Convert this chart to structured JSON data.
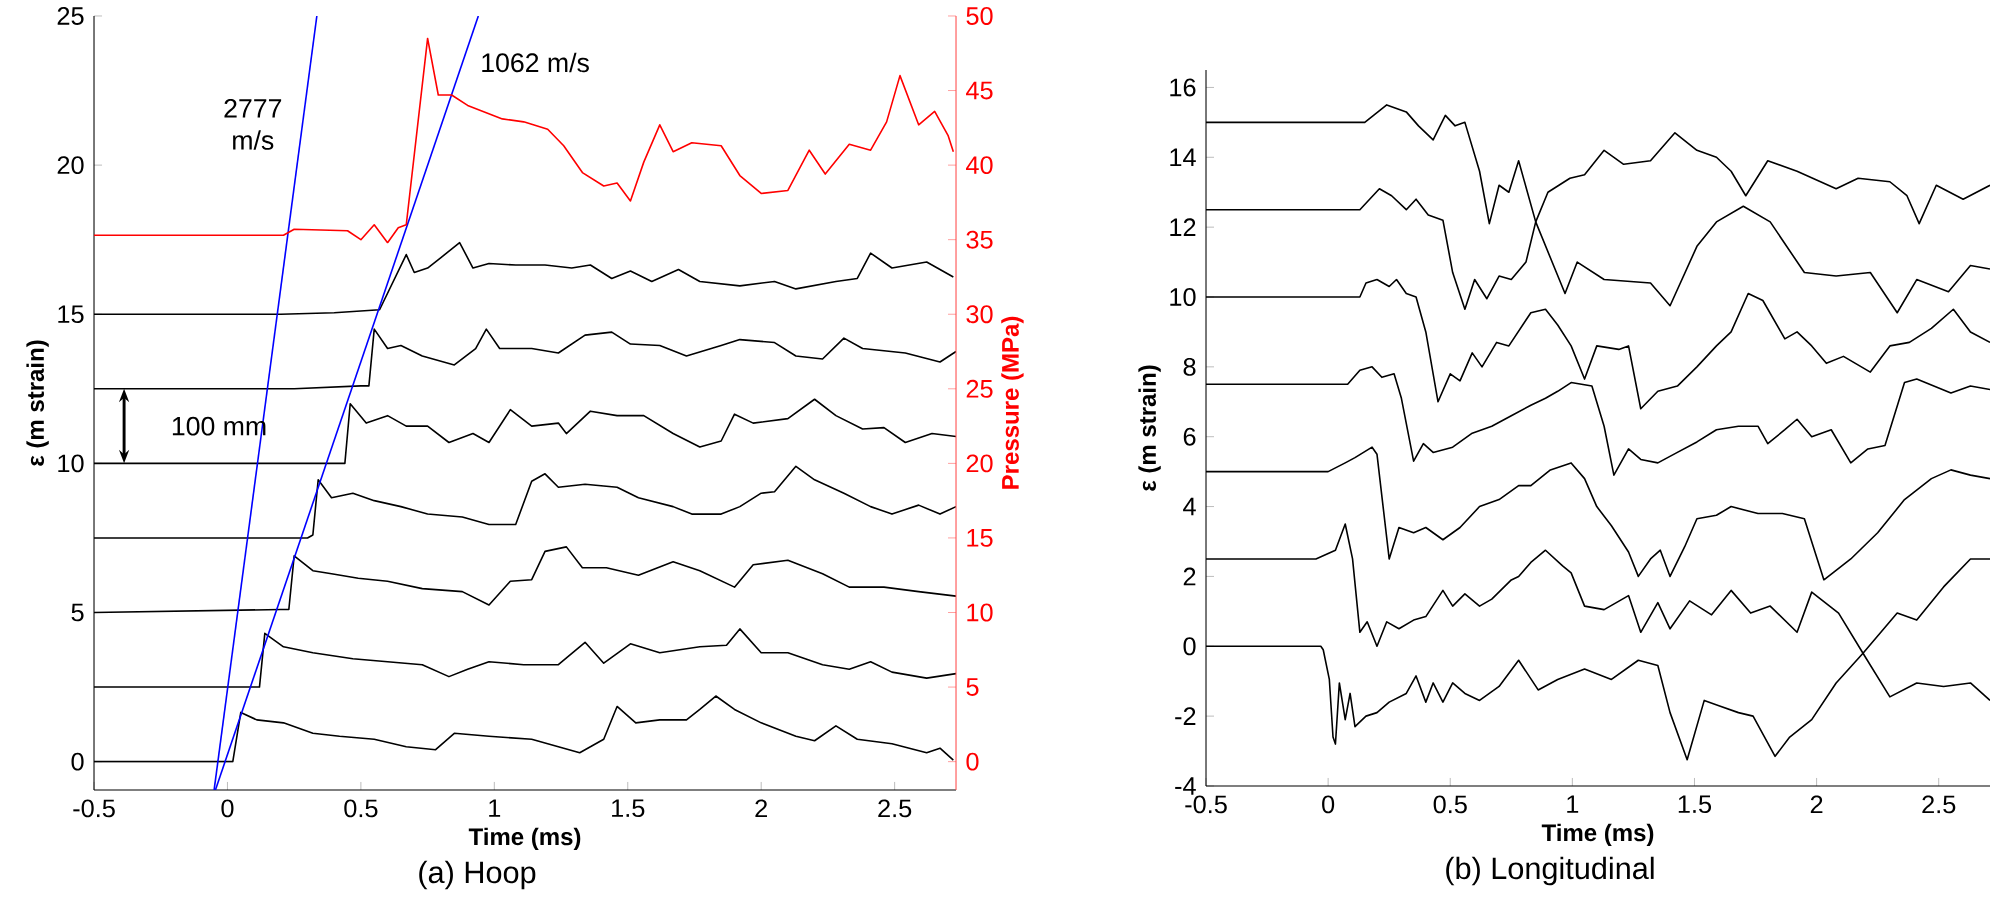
{
  "chart_data": [
    {
      "type": "line",
      "title": "(a) Hoop",
      "xlabel": "Time (ms)",
      "ylabel": "ε (m strain)",
      "y2label": "Pressure (MPa)",
      "xlim": [
        -0.5,
        2.73
      ],
      "ylim": [
        -0.95,
        25
      ],
      "y2lim": [
        -1.9,
        50
      ],
      "xticks": [
        -0.5,
        0,
        0.5,
        1,
        1.5,
        2,
        2.5
      ],
      "yticks": [
        0,
        5,
        10,
        15,
        20,
        25
      ],
      "y2ticks": [
        0,
        5,
        10,
        15,
        20,
        25,
        30,
        35,
        40,
        45,
        50
      ],
      "annotations": [
        "100 mm"
      ],
      "series": [
        {
          "color": "#000000",
          "x": [
            -0.5,
            0.2,
            0.4,
            0.57,
            0.67,
            0.7,
            0.75,
            0.8,
            0.87,
            0.92,
            0.98,
            1.08,
            1.19,
            1.29,
            1.36,
            1.44,
            1.51,
            1.59,
            1.69,
            1.77,
            1.92,
            2.05,
            2.13,
            2.28,
            2.36,
            2.41,
            2.49,
            2.62,
            2.72
          ],
          "values": [
            15,
            15,
            15.05,
            15.15,
            17.0,
            16.4,
            16.55,
            16.9,
            17.4,
            16.55,
            16.7,
            16.65,
            16.65,
            16.55,
            16.65,
            16.2,
            16.45,
            16.1,
            16.5,
            16.1,
            15.95,
            16.1,
            15.85,
            16.1,
            16.2,
            17.05,
            16.55,
            16.75,
            16.25
          ]
        },
        {
          "color": "#000000",
          "x": [
            -0.5,
            0.25,
            0.5,
            0.53,
            0.55,
            0.6,
            0.65,
            0.73,
            0.85,
            0.93,
            0.97,
            1.02,
            1.14,
            1.24,
            1.34,
            1.44,
            1.51,
            1.62,
            1.72,
            1.85,
            1.92,
            2.05,
            2.13,
            2.23,
            2.31,
            2.38,
            2.54,
            2.67,
            2.73
          ],
          "values": [
            12.5,
            12.5,
            12.6,
            12.6,
            14.5,
            13.85,
            13.95,
            13.6,
            13.3,
            13.85,
            14.5,
            13.85,
            13.85,
            13.7,
            14.3,
            14.4,
            14.0,
            13.95,
            13.6,
            13.95,
            14.15,
            14.05,
            13.6,
            13.5,
            14.2,
            13.85,
            13.7,
            13.4,
            13.75
          ]
        },
        {
          "color": "#000000",
          "x": [
            -0.5,
            0.44,
            0.46,
            0.52,
            0.6,
            0.67,
            0.75,
            0.83,
            0.92,
            0.98,
            1.06,
            1.14,
            1.24,
            1.27,
            1.36,
            1.46,
            1.56,
            1.67,
            1.77,
            1.85,
            1.9,
            1.97,
            2.1,
            2.2,
            2.28,
            2.38,
            2.46,
            2.54,
            2.64,
            2.73
          ],
          "values": [
            10,
            10,
            12.0,
            11.35,
            11.6,
            11.25,
            11.25,
            10.7,
            11.0,
            10.7,
            11.8,
            11.25,
            11.35,
            11.0,
            11.75,
            11.6,
            11.6,
            11.0,
            10.55,
            10.75,
            11.65,
            11.35,
            11.5,
            12.15,
            11.6,
            11.15,
            11.2,
            10.7,
            11.0,
            10.9
          ]
        },
        {
          "color": "#000000",
          "x": [
            -0.5,
            0.3,
            0.32,
            0.34,
            0.39,
            0.47,
            0.55,
            0.65,
            0.75,
            0.88,
            0.98,
            1.08,
            1.14,
            1.19,
            1.24,
            1.34,
            1.46,
            1.54,
            1.67,
            1.74,
            1.85,
            1.92,
            2.0,
            2.05,
            2.13,
            2.2,
            2.31,
            2.41,
            2.49,
            2.59,
            2.67,
            2.73
          ],
          "values": [
            7.5,
            7.5,
            7.6,
            9.45,
            8.85,
            9.0,
            8.75,
            8.55,
            8.3,
            8.2,
            7.95,
            7.95,
            9.4,
            9.65,
            9.2,
            9.3,
            9.2,
            8.85,
            8.55,
            8.3,
            8.3,
            8.55,
            9.0,
            9.05,
            9.9,
            9.45,
            9.0,
            8.55,
            8.3,
            8.6,
            8.3,
            8.55
          ]
        },
        {
          "color": "#000000",
          "x": [
            -0.5,
            0.2,
            0.23,
            0.25,
            0.32,
            0.39,
            0.49,
            0.6,
            0.73,
            0.88,
            0.98,
            1.06,
            1.14,
            1.19,
            1.27,
            1.33,
            1.42,
            1.54,
            1.67,
            1.77,
            1.9,
            1.97,
            2.1,
            2.23,
            2.33,
            2.46,
            2.59,
            2.73
          ],
          "values": [
            5,
            5.1,
            5.1,
            6.9,
            6.4,
            6.3,
            6.15,
            6.05,
            5.8,
            5.7,
            5.25,
            6.05,
            6.1,
            7.05,
            7.2,
            6.5,
            6.5,
            6.25,
            6.7,
            6.4,
            5.85,
            6.6,
            6.75,
            6.3,
            5.85,
            5.85,
            5.7,
            5.55
          ]
        },
        {
          "color": "#000000",
          "x": [
            -0.5,
            0.12,
            0.14,
            0.21,
            0.32,
            0.47,
            0.6,
            0.73,
            0.83,
            0.9,
            0.98,
            1.11,
            1.24,
            1.34,
            1.41,
            1.51,
            1.62,
            1.77,
            1.87,
            1.92,
            2.0,
            2.1,
            2.23,
            2.33,
            2.41,
            2.49,
            2.62,
            2.73
          ],
          "values": [
            2.5,
            2.5,
            4.3,
            3.85,
            3.65,
            3.45,
            3.35,
            3.25,
            2.85,
            3.1,
            3.35,
            3.25,
            3.25,
            4.0,
            3.3,
            3.95,
            3.65,
            3.85,
            3.9,
            4.45,
            3.65,
            3.65,
            3.25,
            3.1,
            3.35,
            3.0,
            2.8,
            2.95
          ]
        },
        {
          "color": "#000000",
          "x": [
            -0.5,
            0.02,
            0.05,
            0.11,
            0.21,
            0.32,
            0.42,
            0.55,
            0.67,
            0.78,
            0.85,
            0.98,
            1.14,
            1.24,
            1.32,
            1.41,
            1.46,
            1.53,
            1.62,
            1.72,
            1.77,
            1.83,
            1.9,
            2.0,
            2.13,
            2.2,
            2.28,
            2.36,
            2.49,
            2.62,
            2.67,
            2.72
          ],
          "values": [
            0,
            0,
            1.65,
            1.4,
            1.3,
            0.95,
            0.85,
            0.75,
            0.5,
            0.4,
            0.95,
            0.85,
            0.75,
            0.5,
            0.3,
            0.75,
            1.85,
            1.3,
            1.4,
            1.4,
            1.75,
            2.2,
            1.75,
            1.3,
            0.85,
            0.7,
            1.2,
            0.75,
            0.6,
            0.3,
            0.45,
            0.05
          ]
        },
        {
          "color": "#ff0000",
          "axis": "y2",
          "x": [
            -0.5,
            0.21,
            0.25,
            0.45,
            0.5,
            0.55,
            0.6,
            0.64,
            0.67,
            0.75,
            0.79,
            0.84,
            0.9,
            1.03,
            1.11,
            1.2,
            1.26,
            1.33,
            1.41,
            1.46,
            1.51,
            1.56,
            1.62,
            1.67,
            1.74,
            1.85,
            1.92,
            2.0,
            2.1,
            2.18,
            2.24,
            2.33,
            2.41,
            2.47,
            2.52,
            2.59,
            2.65,
            2.7,
            2.72
          ],
          "values": [
            35.3,
            35.3,
            35.7,
            35.6,
            35.0,
            36.0,
            34.8,
            35.8,
            36.0,
            48.5,
            44.7,
            44.7,
            44.0,
            43.1,
            42.9,
            42.4,
            41.3,
            39.5,
            38.6,
            38.8,
            37.6,
            40.2,
            42.7,
            40.9,
            41.5,
            41.3,
            39.3,
            38.1,
            38.3,
            41.0,
            39.4,
            41.4,
            41.0,
            42.9,
            46.0,
            42.7,
            43.6,
            42.0,
            40.9
          ]
        },
        {
          "name": "2777 m/s",
          "color": "#0000ff",
          "x": [
            -0.05,
            0.335
          ],
          "values": [
            -0.95,
            25
          ]
        },
        {
          "name": "1062 m/s",
          "color": "#0000ff",
          "x": [
            -0.045,
            0.94
          ],
          "values": [
            -0.95,
            25
          ]
        }
      ]
    },
    {
      "type": "line",
      "title": "(b) Longitudinal",
      "xlabel": "Time (ms)",
      "ylabel": "ε (m strain)",
      "xlim": [
        -0.5,
        2.71
      ],
      "ylim": [
        -4,
        16.5
      ],
      "xticks": [
        -0.5,
        0,
        0.5,
        1,
        1.5,
        2,
        2.5
      ],
      "yticks": [
        -4,
        -2,
        0,
        2,
        4,
        6,
        8,
        10,
        12,
        14,
        16
      ],
      "series": [
        {
          "color": "#000000",
          "x": [
            -0.5,
            0.15,
            0.24,
            0.32,
            0.37,
            0.43,
            0.48,
            0.52,
            0.56,
            0.62,
            0.66,
            0.7,
            0.74,
            0.78,
            0.85,
            0.97,
            1.02,
            1.13,
            1.32,
            1.4,
            1.51,
            1.59,
            1.7,
            1.81,
            1.95,
            2.08,
            2.22,
            2.33,
            2.41,
            2.54,
            2.63,
            2.71
          ],
          "values": [
            15,
            15,
            15.5,
            15.3,
            14.9,
            14.5,
            15.2,
            14.9,
            15.0,
            13.6,
            12.1,
            13.2,
            13.0,
            13.9,
            12.15,
            10.1,
            11.0,
            10.5,
            10.4,
            9.75,
            11.45,
            12.15,
            12.6,
            12.15,
            10.7,
            10.6,
            10.7,
            9.55,
            10.5,
            10.15,
            10.9,
            10.8
          ]
        },
        {
          "color": "#000000",
          "x": [
            -0.5,
            0.13,
            0.21,
            0.26,
            0.32,
            0.36,
            0.41,
            0.47,
            0.51,
            0.56,
            0.6,
            0.65,
            0.7,
            0.75,
            0.81,
            0.85,
            0.9,
            0.99,
            1.05,
            1.13,
            1.21,
            1.32,
            1.42,
            1.51,
            1.59,
            1.65,
            1.71,
            1.8,
            1.92,
            2.08,
            2.17,
            2.3,
            2.37,
            2.42,
            2.49,
            2.6,
            2.71
          ],
          "values": [
            12.5,
            12.5,
            13.1,
            12.9,
            12.5,
            12.8,
            12.35,
            12.2,
            10.7,
            9.65,
            10.5,
            9.95,
            10.6,
            10.5,
            11.0,
            12.15,
            13.0,
            13.4,
            13.5,
            14.2,
            13.8,
            13.9,
            14.7,
            14.2,
            14.0,
            13.6,
            12.9,
            13.9,
            13.6,
            13.1,
            13.4,
            13.3,
            12.9,
            12.1,
            13.2,
            12.8,
            13.2
          ]
        },
        {
          "color": "#000000",
          "x": [
            -0.5,
            0.13,
            0.155,
            0.2,
            0.25,
            0.28,
            0.32,
            0.36,
            0.4,
            0.45,
            0.5,
            0.54,
            0.59,
            0.63,
            0.69,
            0.74,
            0.83,
            0.89,
            0.94,
            0.995,
            1.05,
            1.1,
            1.19,
            1.23,
            1.28,
            1.35,
            1.43,
            1.51,
            1.59,
            1.65,
            1.72,
            1.78,
            1.87,
            1.92,
            1.98,
            2.04,
            2.11,
            2.22,
            2.3,
            2.38,
            2.47,
            2.56,
            2.63,
            2.71
          ],
          "values": [
            10,
            10,
            10.4,
            10.5,
            10.3,
            10.5,
            10.1,
            10.0,
            9.0,
            7.0,
            7.8,
            7.6,
            8.4,
            8.0,
            8.7,
            8.6,
            9.55,
            9.65,
            9.2,
            8.6,
            7.65,
            8.6,
            8.5,
            8.6,
            6.8,
            7.3,
            7.45,
            8.0,
            8.6,
            9.0,
            10.1,
            9.9,
            8.8,
            9.0,
            8.6,
            8.1,
            8.3,
            7.85,
            8.6,
            8.7,
            9.1,
            9.65,
            9.0,
            8.7
          ]
        },
        {
          "color": "#000000",
          "x": [
            -0.5,
            0.08,
            0.13,
            0.18,
            0.22,
            0.27,
            0.3,
            0.35,
            0.39,
            0.43,
            0.51,
            0.59,
            0.67,
            0.75,
            0.83,
            0.89,
            0.94,
            0.995,
            1.08,
            1.13,
            1.17,
            1.23,
            1.28,
            1.35,
            1.43,
            1.51,
            1.59,
            1.68,
            1.76,
            1.8,
            1.87,
            1.92,
            1.98,
            2.06,
            2.14,
            2.21,
            2.28,
            2.36,
            2.41,
            2.55,
            2.63,
            2.71
          ],
          "values": [
            7.5,
            7.5,
            7.9,
            8.0,
            7.7,
            7.8,
            7.1,
            5.3,
            5.8,
            5.55,
            5.7,
            6.1,
            6.3,
            6.6,
            6.9,
            7.1,
            7.3,
            7.55,
            7.45,
            6.3,
            4.9,
            5.65,
            5.35,
            5.25,
            5.55,
            5.85,
            6.2,
            6.3,
            6.3,
            5.8,
            6.2,
            6.5,
            6.0,
            6.2,
            5.25,
            5.65,
            5.75,
            7.55,
            7.65,
            7.25,
            7.45,
            7.35
          ]
        },
        {
          "color": "#000000",
          "x": [
            -0.5,
            0.0,
            0.07,
            0.11,
            0.18,
            0.2,
            0.25,
            0.29,
            0.35,
            0.4,
            0.47,
            0.54,
            0.62,
            0.7,
            0.78,
            0.83,
            0.91,
            0.995,
            1.05,
            1.1,
            1.16,
            1.23,
            1.27,
            1.32,
            1.36,
            1.4,
            1.46,
            1.51,
            1.59,
            1.65,
            1.76,
            1.86,
            1.95,
            2.03,
            2.14,
            2.25,
            2.36,
            2.47,
            2.55,
            2.63,
            2.71
          ],
          "values": [
            5,
            5,
            5.25,
            5.4,
            5.7,
            5.5,
            2.5,
            3.4,
            3.25,
            3.4,
            3.05,
            3.4,
            4.0,
            4.2,
            4.6,
            4.6,
            5.05,
            5.25,
            4.8,
            4.0,
            3.45,
            2.7,
            2.0,
            2.5,
            2.75,
            2.0,
            2.85,
            3.65,
            3.75,
            4.0,
            3.8,
            3.8,
            3.65,
            1.9,
            2.5,
            3.25,
            4.2,
            4.8,
            5.05,
            4.9,
            4.8
          ]
        },
        {
          "color": "#000000",
          "x": [
            -0.5,
            -0.05,
            0.03,
            0.07,
            0.1,
            0.13,
            0.16,
            0.2,
            0.24,
            0.29,
            0.35,
            0.4,
            0.47,
            0.51,
            0.56,
            0.62,
            0.67,
            0.75,
            0.78,
            0.83,
            0.89,
            0.96,
            0.995,
            1.05,
            1.13,
            1.23,
            1.28,
            1.35,
            1.4,
            1.48,
            1.57,
            1.65,
            1.73,
            1.81,
            1.92,
            1.98,
            2.09,
            2.19,
            2.3,
            2.41,
            2.52,
            2.63,
            2.71
          ],
          "values": [
            2.5,
            2.5,
            2.75,
            3.5,
            2.5,
            0.4,
            0.7,
            0.0,
            0.7,
            0.5,
            0.75,
            0.85,
            1.6,
            1.15,
            1.5,
            1.15,
            1.35,
            1.9,
            2.0,
            2.4,
            2.75,
            2.3,
            2.1,
            1.15,
            1.05,
            1.45,
            0.4,
            1.25,
            0.5,
            1.3,
            0.9,
            1.6,
            0.95,
            1.15,
            0.4,
            1.55,
            0.95,
            -0.2,
            -1.45,
            -1.05,
            -1.15,
            -1.05,
            -1.55
          ]
        },
        {
          "color": "#000000",
          "x": [
            -0.5,
            -0.03,
            -0.02,
            0.005,
            0.02,
            0.03,
            0.046,
            0.07,
            0.09,
            0.11,
            0.155,
            0.2,
            0.25,
            0.32,
            0.36,
            0.4,
            0.43,
            0.47,
            0.51,
            0.56,
            0.62,
            0.7,
            0.78,
            0.86,
            0.94,
            1.05,
            1.16,
            1.27,
            1.35,
            1.4,
            1.47,
            1.54,
            1.6,
            1.68,
            1.74,
            1.83,
            1.89,
            1.98,
            2.08,
            2.19,
            2.33,
            2.41,
            2.52,
            2.63,
            2.71
          ],
          "values": [
            0,
            0,
            -0.1,
            -0.95,
            -2.6,
            -2.8,
            -1.05,
            -2.1,
            -1.35,
            -2.3,
            -2.0,
            -1.9,
            -1.6,
            -1.35,
            -0.85,
            -1.6,
            -1.05,
            -1.6,
            -1.05,
            -1.35,
            -1.55,
            -1.15,
            -0.4,
            -1.25,
            -0.95,
            -0.65,
            -0.95,
            -0.4,
            -0.55,
            -1.9,
            -3.25,
            -1.55,
            -1.7,
            -1.9,
            -2.0,
            -3.15,
            -2.6,
            -2.1,
            -1.05,
            -0.2,
            0.95,
            0.75,
            1.7,
            2.5,
            2.5
          ]
        }
      ]
    }
  ]
}
